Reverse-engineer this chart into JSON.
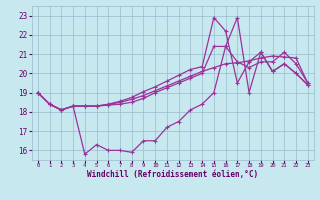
{
  "xlabel": "Windchill (Refroidissement éolien,°C)",
  "bg_color": "#c8e8f0",
  "grid_color": "#99bbcc",
  "line_color": "#993399",
  "x_ticks": [
    0,
    1,
    2,
    3,
    4,
    5,
    6,
    7,
    8,
    9,
    10,
    11,
    12,
    13,
    14,
    15,
    16,
    17,
    18,
    19,
    20,
    21,
    22,
    23
  ],
  "y_ticks": [
    16,
    17,
    18,
    19,
    20,
    21,
    22,
    23
  ],
  "ylim": [
    15.5,
    23.5
  ],
  "xlim": [
    -0.5,
    23.5
  ],
  "line1": [
    19.0,
    18.4,
    18.1,
    18.3,
    15.8,
    16.3,
    16.0,
    16.0,
    15.9,
    16.5,
    16.5,
    17.2,
    17.5,
    18.1,
    18.4,
    19.0,
    21.4,
    22.9,
    19.0,
    21.1,
    20.1,
    20.5,
    20.0,
    19.4
  ],
  "line2": [
    19.0,
    18.4,
    18.1,
    18.3,
    18.3,
    18.3,
    18.35,
    18.4,
    18.5,
    18.7,
    19.0,
    19.25,
    19.5,
    19.75,
    20.0,
    21.4,
    21.4,
    20.6,
    20.3,
    20.6,
    20.6,
    21.1,
    20.5,
    19.5
  ],
  "line3": [
    19.0,
    18.4,
    18.1,
    18.3,
    18.3,
    18.3,
    18.38,
    18.5,
    18.65,
    18.85,
    19.1,
    19.35,
    19.6,
    19.85,
    20.1,
    20.3,
    20.5,
    20.55,
    20.65,
    20.8,
    20.9,
    20.85,
    20.8,
    19.5
  ],
  "line4": [
    19.0,
    18.4,
    18.1,
    18.3,
    18.3,
    18.3,
    18.4,
    18.55,
    18.75,
    19.05,
    19.3,
    19.6,
    19.9,
    20.2,
    20.35,
    22.9,
    22.2,
    19.5,
    20.6,
    21.1,
    20.1,
    20.5,
    20.0,
    19.4
  ]
}
